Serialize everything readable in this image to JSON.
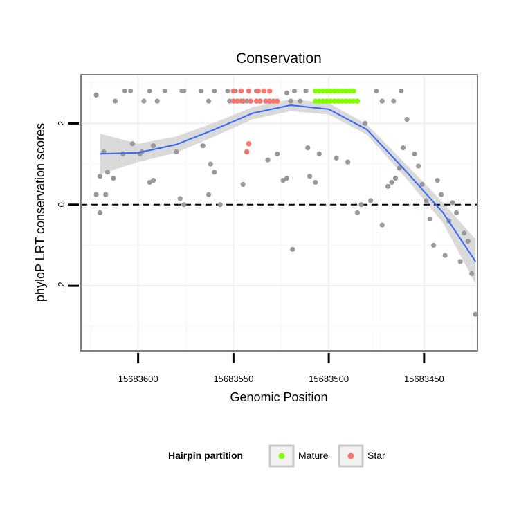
{
  "chart_data": {
    "type": "scatter",
    "title": "Conservation",
    "xlabel": "Genomic Position",
    "ylabel": "phyloP LRT conservation scores",
    "x_reversed": true,
    "xlim": [
      15683630,
      15683422
    ],
    "ylim": [
      -3.6,
      3.2
    ],
    "x_ticks": [
      15683600,
      15683550,
      15683500,
      15683450
    ],
    "x_tick_labels": [
      "15683600",
      "15683550",
      "15683500",
      "15683450"
    ],
    "y_ticks": [
      -2,
      0,
      2
    ],
    "y_tick_labels": [
      "-2",
      "0",
      "2"
    ],
    "reference_line_y": 0,
    "grid": true,
    "legend": {
      "title": "Hairpin partition",
      "position": "bottom",
      "entries": [
        {
          "label": "Mature",
          "color": "#7fff00"
        },
        {
          "label": "Star",
          "color": "#f8766d"
        }
      ]
    },
    "colors": {
      "points": "#999999",
      "mature": "#7fff00",
      "star": "#f8766d",
      "smooth_line": "#3366ff",
      "ribbon": "#d3d3d3"
    },
    "series": [
      {
        "name": "Mature",
        "x": [
          15683507,
          15683505,
          15683503,
          15683501,
          15683499,
          15683497,
          15683495,
          15683493,
          15683491,
          15683489,
          15683487,
          15683507,
          15683505,
          15683503,
          15683501,
          15683499,
          15683497,
          15683495,
          15683493,
          15683491,
          15683489,
          15683487,
          15683485
        ],
        "y": [
          2.8,
          2.8,
          2.8,
          2.8,
          2.8,
          2.8,
          2.8,
          2.8,
          2.8,
          2.8,
          2.8,
          2.55,
          2.55,
          2.55,
          2.55,
          2.55,
          2.55,
          2.55,
          2.55,
          2.55,
          2.55,
          2.55,
          2.55
        ]
      },
      {
        "name": "Star",
        "x": [
          15683550,
          15683546,
          15683542,
          15683537,
          15683534,
          15683531,
          15683550,
          15683548,
          15683545,
          15683541,
          15683538,
          15683536,
          15683533,
          15683531,
          15683529,
          15683527,
          15683542,
          15683543
        ],
        "y": [
          2.8,
          2.8,
          2.8,
          2.8,
          2.8,
          2.8,
          2.55,
          2.55,
          2.55,
          2.55,
          2.55,
          2.55,
          2.55,
          2.55,
          2.55,
          2.55,
          1.5,
          1.3
        ]
      }
    ],
    "other_points": {
      "x": [
        15683622,
        15683612,
        15683607,
        15683604,
        15683597,
        15683594,
        15683590,
        15683586,
        15683577,
        15683576,
        15683567,
        15683563,
        15683560,
        15683553,
        15683552,
        15683549,
        15683546,
        15683543,
        15683538,
        15683522,
        15683520,
        15683518,
        15683515,
        15683512,
        15683475,
        15683472,
        15683466,
        15683462,
        15683620,
        15683617,
        15683603,
        15683598,
        15683592,
        15683580,
        15683562,
        15683532,
        15683527,
        15683511,
        15683496,
        15683490,
        15683622,
        15683620,
        15683618,
        15683616,
        15683613,
        15683608,
        15683599,
        15683594,
        15683592,
        15683580,
        15683578,
        15683576,
        15683566,
        15683563,
        15683560,
        15683557,
        15683545,
        15683524,
        15683522,
        15683519,
        15683510,
        15683507,
        15683505,
        15683485,
        15683483,
        15683481,
        15683478,
        15683472,
        15683469,
        15683467,
        15683465,
        15683463,
        15683461,
        15683459,
        15683455,
        15683453,
        15683451,
        15683449,
        15683447,
        15683445,
        15683443,
        15683441,
        15683439,
        15683437,
        15683435,
        15683433,
        15683431,
        15683429,
        15683427,
        15683425,
        15683423
      ],
      "y": [
        2.7,
        2.55,
        2.8,
        2.8,
        2.55,
        2.8,
        2.55,
        2.8,
        2.8,
        2.8,
        2.8,
        2.55,
        2.8,
        2.8,
        2.55,
        2.8,
        2.55,
        2.55,
        2.8,
        2.75,
        2.55,
        2.8,
        2.55,
        2.8,
        2.8,
        2.55,
        2.55,
        2.8,
        0.7,
        0.25,
        1.5,
        1.3,
        0.6,
        1.3,
        1.0,
        1.1,
        1.25,
        1.4,
        1.15,
        1.05,
        0.25,
        -0.2,
        1.3,
        0.8,
        0.65,
        1.25,
        1.25,
        0.55,
        1.45,
        1.3,
        0.15,
        0.0,
        1.45,
        0.25,
        0.8,
        0.0,
        0.5,
        0.6,
        0.65,
        -1.1,
        0.7,
        0.55,
        1.25,
        -0.2,
        0.0,
        2.0,
        0.1,
        -0.5,
        0.45,
        0.55,
        0.65,
        0.9,
        1.4,
        2.1,
        1.25,
        0.95,
        0.5,
        0.1,
        -0.35,
        -1.0,
        0.6,
        0.25,
        -1.25,
        -0.4,
        0.05,
        -0.2,
        -1.4,
        -0.7,
        -0.9,
        -1.7,
        -2.7
      ]
    },
    "smooth": {
      "x": [
        15683620,
        15683600,
        15683580,
        15683560,
        15683540,
        15683520,
        15683500,
        15683480,
        15683460,
        15683440,
        15683423
      ],
      "y": [
        1.25,
        1.28,
        1.48,
        1.85,
        2.25,
        2.45,
        2.35,
        1.85,
        0.85,
        -0.2,
        -1.4
      ],
      "ribbon_lo": [
        0.75,
        1.05,
        1.28,
        1.68,
        2.1,
        2.3,
        2.22,
        1.72,
        0.68,
        -0.45,
        -1.95
      ],
      "ribbon_hi": [
        1.75,
        1.5,
        1.68,
        2.02,
        2.4,
        2.6,
        2.5,
        1.98,
        1.02,
        0.05,
        -0.85
      ]
    }
  }
}
